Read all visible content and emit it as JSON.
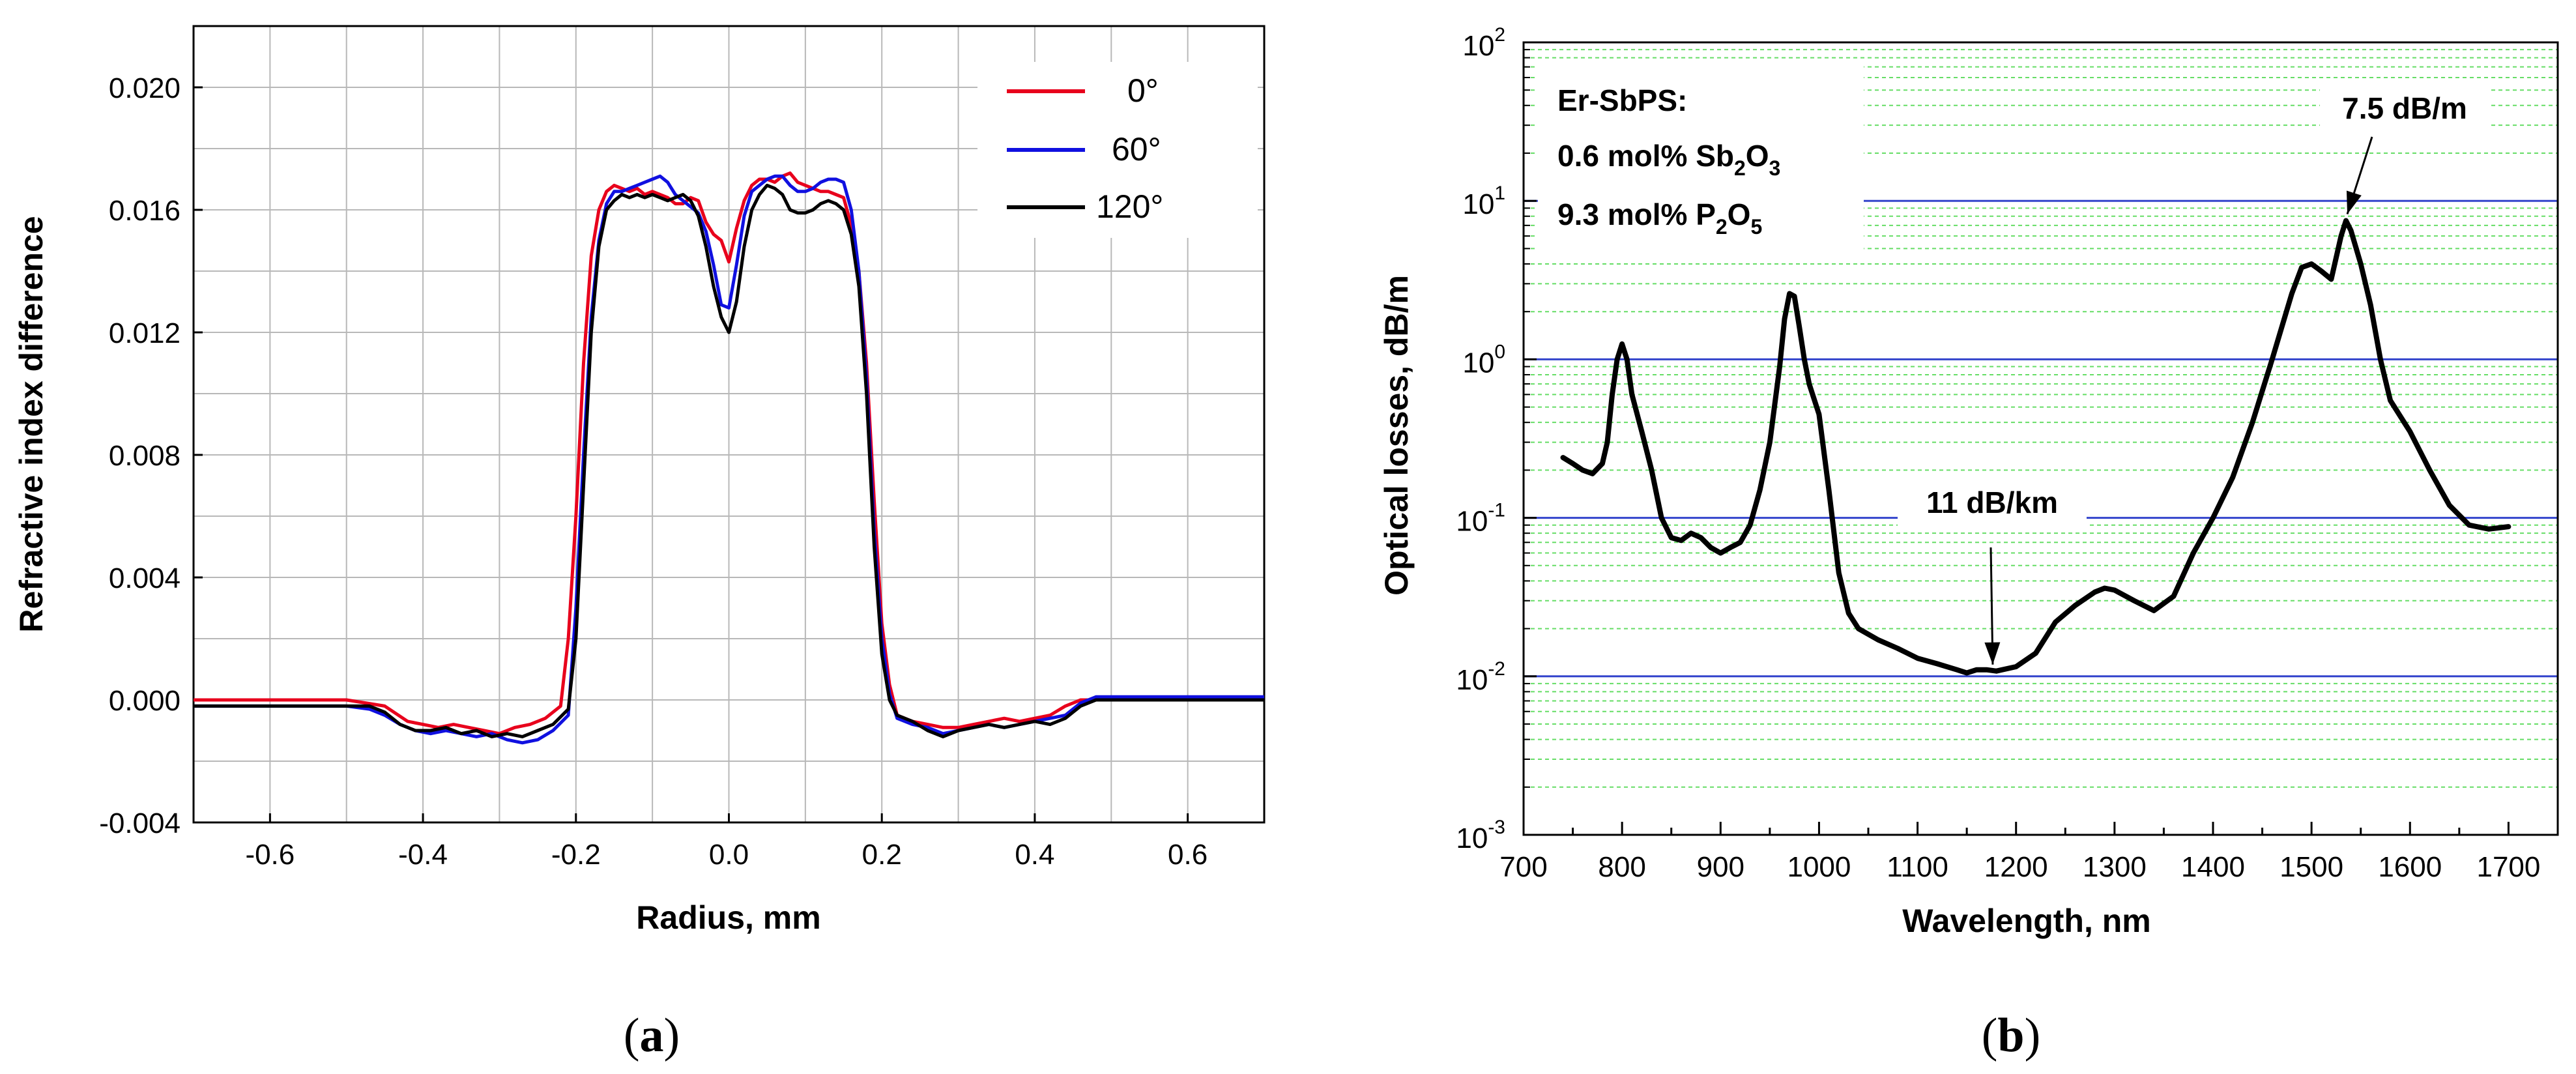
{
  "chart_data": [
    {
      "id": "a",
      "type": "line",
      "title": "",
      "caption": {
        "open": "(",
        "letter": "a",
        "close": ")"
      },
      "xlabel": "Radius, mm",
      "ylabel": "Refractive index difference",
      "xlim": [
        -0.7,
        0.7
      ],
      "ylim": [
        -0.004,
        0.022
      ],
      "grid": true,
      "legend_position": "top-right",
      "x_ticks": [
        -0.6,
        -0.4,
        -0.2,
        0.0,
        0.2,
        0.4,
        0.6
      ],
      "x_tick_labels": [
        "-0.6",
        "-0.4",
        "-0.2",
        "0.0",
        "0.2",
        "0.4",
        "0.6"
      ],
      "y_ticks": [
        -0.004,
        0.0,
        0.004,
        0.008,
        0.012,
        0.016,
        0.02
      ],
      "y_tick_labels": [
        "-0.004",
        "0.000",
        "0.004",
        "0.008",
        "0.012",
        "0.016",
        "0.020"
      ],
      "series": [
        {
          "name": "0°",
          "color": "#e8001c",
          "x": [
            -0.7,
            -0.5,
            -0.45,
            -0.42,
            -0.4,
            -0.38,
            -0.36,
            -0.34,
            -0.32,
            -0.3,
            -0.28,
            -0.26,
            -0.24,
            -0.22,
            -0.21,
            -0.2,
            -0.19,
            -0.18,
            -0.17,
            -0.16,
            -0.15,
            -0.14,
            -0.13,
            -0.12,
            -0.11,
            -0.1,
            -0.09,
            -0.08,
            -0.07,
            -0.06,
            -0.05,
            -0.04,
            -0.03,
            -0.02,
            -0.01,
            0.0,
            0.01,
            0.02,
            0.03,
            0.04,
            0.05,
            0.06,
            0.07,
            0.08,
            0.09,
            0.1,
            0.11,
            0.12,
            0.13,
            0.14,
            0.15,
            0.16,
            0.17,
            0.18,
            0.19,
            0.2,
            0.21,
            0.22,
            0.24,
            0.26,
            0.28,
            0.3,
            0.32,
            0.34,
            0.36,
            0.38,
            0.4,
            0.42,
            0.44,
            0.46,
            0.5,
            0.6,
            0.7
          ],
          "y": [
            0.0,
            0.0,
            -0.0002,
            -0.0007,
            -0.0008,
            -0.0009,
            -0.0008,
            -0.0009,
            -0.001,
            -0.0011,
            -0.0009,
            -0.0008,
            -0.0006,
            -0.0002,
            0.002,
            0.006,
            0.011,
            0.0145,
            0.016,
            0.0166,
            0.0168,
            0.0167,
            0.0166,
            0.0167,
            0.0165,
            0.0166,
            0.0165,
            0.0164,
            0.0162,
            0.0162,
            0.0164,
            0.0163,
            0.0156,
            0.0152,
            0.015,
            0.0143,
            0.0154,
            0.0163,
            0.0168,
            0.017,
            0.017,
            0.0169,
            0.0171,
            0.0172,
            0.0169,
            0.0168,
            0.0167,
            0.0166,
            0.0166,
            0.0165,
            0.0164,
            0.0155,
            0.014,
            0.011,
            0.0065,
            0.0025,
            0.0005,
            -0.0005,
            -0.0007,
            -0.0008,
            -0.0009,
            -0.0009,
            -0.0008,
            -0.0007,
            -0.0006,
            -0.0007,
            -0.0006,
            -0.0005,
            -0.0002,
            0.0,
            0.0,
            0.0,
            0.0
          ]
        },
        {
          "name": "60°",
          "color": "#1010e0",
          "x": [
            -0.7,
            -0.5,
            -0.47,
            -0.45,
            -0.43,
            -0.41,
            -0.39,
            -0.37,
            -0.35,
            -0.33,
            -0.31,
            -0.29,
            -0.27,
            -0.25,
            -0.23,
            -0.21,
            -0.2,
            -0.19,
            -0.18,
            -0.17,
            -0.16,
            -0.15,
            -0.14,
            -0.13,
            -0.12,
            -0.11,
            -0.1,
            -0.09,
            -0.08,
            -0.07,
            -0.06,
            -0.05,
            -0.04,
            -0.03,
            -0.02,
            -0.01,
            0.0,
            0.01,
            0.02,
            0.03,
            0.04,
            0.05,
            0.06,
            0.07,
            0.08,
            0.09,
            0.1,
            0.11,
            0.12,
            0.13,
            0.14,
            0.15,
            0.16,
            0.17,
            0.18,
            0.19,
            0.2,
            0.21,
            0.22,
            0.24,
            0.26,
            0.28,
            0.3,
            0.32,
            0.34,
            0.36,
            0.38,
            0.4,
            0.42,
            0.44,
            0.46,
            0.48,
            0.5,
            0.6,
            0.7
          ],
          "y": [
            -0.0002,
            -0.0002,
            -0.0003,
            -0.0005,
            -0.0008,
            -0.001,
            -0.0011,
            -0.001,
            -0.0011,
            -0.0012,
            -0.0011,
            -0.0013,
            -0.0014,
            -0.0013,
            -0.001,
            -0.0005,
            0.003,
            0.008,
            0.0125,
            0.015,
            0.0162,
            0.0166,
            0.0166,
            0.0167,
            0.0168,
            0.0169,
            0.017,
            0.0171,
            0.0169,
            0.0165,
            0.0163,
            0.0161,
            0.0159,
            0.0153,
            0.0142,
            0.0129,
            0.0128,
            0.0142,
            0.0158,
            0.0166,
            0.0168,
            0.017,
            0.0171,
            0.0171,
            0.0168,
            0.0166,
            0.0166,
            0.0167,
            0.0169,
            0.017,
            0.017,
            0.0169,
            0.016,
            0.014,
            0.0105,
            0.0055,
            0.002,
            0.0002,
            -0.0006,
            -0.0008,
            -0.0009,
            -0.0011,
            -0.001,
            -0.0009,
            -0.0008,
            -0.0009,
            -0.0008,
            -0.0007,
            -0.0006,
            -0.0005,
            -0.0001,
            0.0001,
            0.0001,
            0.0001,
            0.0001
          ]
        },
        {
          "name": "120°",
          "color": "#000000",
          "x": [
            -0.7,
            -0.5,
            -0.47,
            -0.45,
            -0.43,
            -0.41,
            -0.39,
            -0.37,
            -0.35,
            -0.33,
            -0.31,
            -0.29,
            -0.27,
            -0.25,
            -0.23,
            -0.21,
            -0.2,
            -0.19,
            -0.18,
            -0.17,
            -0.16,
            -0.15,
            -0.14,
            -0.13,
            -0.12,
            -0.11,
            -0.1,
            -0.09,
            -0.08,
            -0.07,
            -0.06,
            -0.05,
            -0.04,
            -0.03,
            -0.02,
            -0.01,
            0.0,
            0.01,
            0.02,
            0.03,
            0.04,
            0.05,
            0.06,
            0.07,
            0.08,
            0.09,
            0.1,
            0.11,
            0.12,
            0.13,
            0.14,
            0.15,
            0.16,
            0.17,
            0.18,
            0.19,
            0.2,
            0.21,
            0.22,
            0.24,
            0.26,
            0.28,
            0.3,
            0.32,
            0.34,
            0.36,
            0.38,
            0.4,
            0.42,
            0.44,
            0.46,
            0.48,
            0.5,
            0.6,
            0.7
          ],
          "y": [
            -0.0002,
            -0.0002,
            -0.0002,
            -0.0004,
            -0.0008,
            -0.001,
            -0.001,
            -0.0009,
            -0.0011,
            -0.001,
            -0.0012,
            -0.0011,
            -0.0012,
            -0.001,
            -0.0008,
            -0.0003,
            0.002,
            0.007,
            0.012,
            0.0148,
            0.016,
            0.0163,
            0.0165,
            0.0164,
            0.0165,
            0.0164,
            0.0165,
            0.0164,
            0.0163,
            0.0164,
            0.0165,
            0.0163,
            0.0158,
            0.0148,
            0.0135,
            0.0125,
            0.012,
            0.013,
            0.0148,
            0.016,
            0.0165,
            0.0168,
            0.0167,
            0.0165,
            0.016,
            0.0159,
            0.0159,
            0.016,
            0.0162,
            0.0163,
            0.0162,
            0.016,
            0.0152,
            0.0135,
            0.01,
            0.005,
            0.0015,
            0.0,
            -0.0005,
            -0.0007,
            -0.001,
            -0.0012,
            -0.001,
            -0.0009,
            -0.0008,
            -0.0009,
            -0.0008,
            -0.0007,
            -0.0008,
            -0.0006,
            -0.0002,
            0.0,
            0.0,
            0.0,
            0.0
          ]
        }
      ]
    },
    {
      "id": "b",
      "type": "line",
      "title": "",
      "caption": {
        "open": "(",
        "letter": "b",
        "close": ")"
      },
      "xlabel": "Wavelength, nm",
      "ylabel": "Optical losses, dB/m",
      "yscale": "log",
      "xlim": [
        700,
        1750
      ],
      "ylim": [
        0.001,
        100
      ],
      "grid": true,
      "x_ticks": [
        700,
        800,
        900,
        1000,
        1100,
        1200,
        1300,
        1400,
        1500,
        1600,
        1700
      ],
      "x_tick_labels": [
        "700",
        "800",
        "900",
        "1000",
        "1100",
        "1200",
        "1300",
        "1400",
        "1500",
        "1600",
        "1700"
      ],
      "y_ticks": [
        0.001,
        0.01,
        0.1,
        1,
        10,
        100
      ],
      "y_tick_labels": [
        {
          "base": "10",
          "exp": "-3"
        },
        {
          "base": "10",
          "exp": "-2"
        },
        {
          "base": "10",
          "exp": "-1"
        },
        {
          "base": "10",
          "exp": "0"
        },
        {
          "base": "10",
          "exp": "1"
        },
        {
          "base": "10",
          "exp": "2"
        }
      ],
      "reference_lines": [
        0.01,
        0.1,
        1,
        10
      ],
      "textbox": {
        "line1": "Er-SbPS:",
        "line2": {
          "text": "0.6 mol% Sb",
          "sub1": "2",
          "mid": "O",
          "sub2": "3"
        },
        "line3": {
          "text": "9.3 mol% P",
          "sub1": "2",
          "mid": "O",
          "sub2": "5"
        }
      },
      "annotations": [
        {
          "text": "7.5 dB/m",
          "target_x": 1535,
          "target_y": 7.5
        },
        {
          "text": "11 dB/km",
          "target_x": 1175,
          "target_y": 0.011
        }
      ],
      "series": [
        {
          "name": "Er-SbPS",
          "color": "#000000",
          "x": [
            740,
            750,
            760,
            770,
            780,
            785,
            790,
            795,
            800,
            805,
            810,
            820,
            830,
            840,
            850,
            860,
            870,
            880,
            890,
            900,
            910,
            920,
            930,
            940,
            950,
            960,
            965,
            970,
            975,
            980,
            985,
            990,
            1000,
            1010,
            1020,
            1030,
            1040,
            1060,
            1080,
            1100,
            1120,
            1140,
            1150,
            1160,
            1170,
            1180,
            1200,
            1220,
            1240,
            1260,
            1280,
            1290,
            1300,
            1320,
            1340,
            1360,
            1380,
            1400,
            1420,
            1440,
            1460,
            1480,
            1490,
            1500,
            1510,
            1520,
            1530,
            1535,
            1540,
            1550,
            1560,
            1570,
            1580,
            1600,
            1620,
            1640,
            1660,
            1680,
            1700
          ],
          "y": [
            0.24,
            0.22,
            0.2,
            0.19,
            0.22,
            0.3,
            0.6,
            1.0,
            1.25,
            1.0,
            0.6,
            0.35,
            0.2,
            0.1,
            0.075,
            0.072,
            0.08,
            0.075,
            0.065,
            0.06,
            0.065,
            0.07,
            0.09,
            0.15,
            0.3,
            0.9,
            1.8,
            2.6,
            2.5,
            1.6,
            1.0,
            0.7,
            0.45,
            0.15,
            0.045,
            0.025,
            0.02,
            0.017,
            0.015,
            0.013,
            0.012,
            0.011,
            0.0105,
            0.011,
            0.011,
            0.0108,
            0.0115,
            0.014,
            0.022,
            0.028,
            0.034,
            0.036,
            0.035,
            0.03,
            0.026,
            0.032,
            0.06,
            0.1,
            0.18,
            0.4,
            1.0,
            2.6,
            3.8,
            4.0,
            3.6,
            3.2,
            6.0,
            7.5,
            6.5,
            4.0,
            2.2,
            1.0,
            0.55,
            0.35,
            0.2,
            0.12,
            0.09,
            0.085,
            0.088
          ]
        }
      ]
    }
  ]
}
